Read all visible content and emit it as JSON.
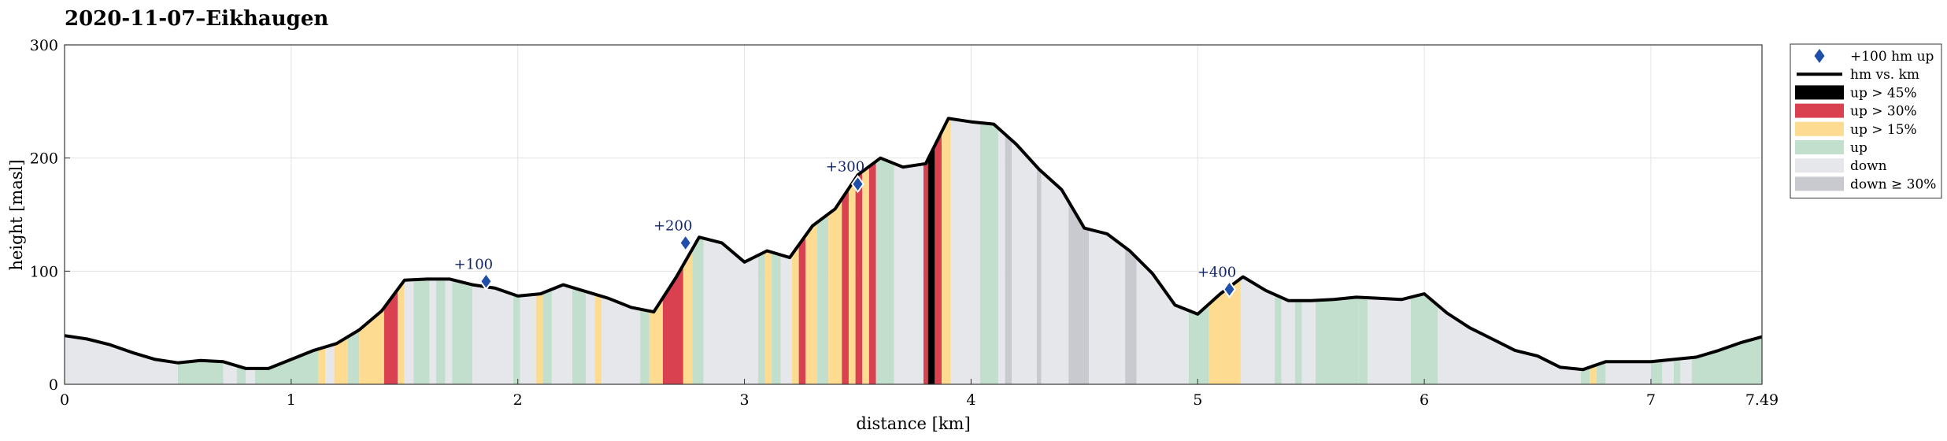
{
  "chart_data": {
    "type": "area",
    "title": "2020-11-07–Eikhaugen",
    "xlabel": "distance [km]",
    "ylabel": "height [masl]",
    "xlim": [
      0,
      7.49
    ],
    "ylim": [
      0,
      300
    ],
    "x_ticks": [
      0,
      1,
      2,
      3,
      4,
      5,
      6,
      7,
      7.49
    ],
    "x_tick_labels": [
      "0",
      "1",
      "2",
      "3",
      "4",
      "5",
      "6",
      "7",
      "7.49"
    ],
    "y_ticks": [
      0,
      100,
      200,
      300
    ],
    "y_tick_labels": [
      "0",
      "100",
      "200",
      "300"
    ],
    "grid": true,
    "legend_position": "outside-right-top",
    "legend": [
      {
        "label": "+100 hm up",
        "kind": "diamond",
        "color": "#1f4fa8"
      },
      {
        "label": "hm vs. km",
        "kind": "line",
        "color": "#000000"
      },
      {
        "label": "up > 45%",
        "kind": "patch",
        "color": "#000000"
      },
      {
        "label": "up > 30%",
        "kind": "patch",
        "color": "#d94050"
      },
      {
        "label": "up > 15%",
        "kind": "patch",
        "color": "#fddc92"
      },
      {
        "label": "up",
        "kind": "patch",
        "color": "#c1dfcc"
      },
      {
        "label": "down",
        "kind": "patch",
        "color": "#e6e7ea"
      },
      {
        "label": "down ≥ 30%",
        "kind": "patch",
        "color": "#c8cad0"
      }
    ],
    "profile": {
      "x": [
        0,
        0.1,
        0.2,
        0.3,
        0.4,
        0.5,
        0.6,
        0.7,
        0.8,
        0.9,
        1.0,
        1.1,
        1.2,
        1.3,
        1.4,
        1.5,
        1.6,
        1.7,
        1.8,
        1.9,
        2.0,
        2.1,
        2.2,
        2.3,
        2.4,
        2.5,
        2.6,
        2.7,
        2.8,
        2.9,
        3.0,
        3.1,
        3.2,
        3.3,
        3.4,
        3.5,
        3.6,
        3.7,
        3.8,
        3.9,
        4.0,
        4.1,
        4.2,
        4.3,
        4.4,
        4.5,
        4.6,
        4.7,
        4.8,
        4.9,
        5.0,
        5.1,
        5.2,
        5.3,
        5.4,
        5.5,
        5.6,
        5.7,
        5.8,
        5.9,
        6.0,
        6.1,
        6.2,
        6.3,
        6.4,
        6.5,
        6.6,
        6.7,
        6.8,
        6.9,
        7.0,
        7.1,
        7.2,
        7.3,
        7.4,
        7.49
      ],
      "y": [
        43,
        40,
        35,
        28,
        22,
        19,
        21,
        20,
        14,
        14,
        22,
        30,
        36,
        48,
        65,
        92,
        93,
        93,
        88,
        85,
        78,
        80,
        88,
        82,
        76,
        68,
        64,
        95,
        130,
        125,
        108,
        118,
        112,
        140,
        155,
        185,
        200,
        192,
        195,
        235,
        232,
        230,
        212,
        190,
        172,
        138,
        133,
        118,
        98,
        70,
        62,
        80,
        95,
        83,
        74,
        74,
        75,
        77,
        76,
        75,
        80,
        63,
        50,
        40,
        30,
        25,
        15,
        13,
        20,
        20,
        20,
        22,
        24,
        30,
        37,
        42
      ]
    },
    "segments": [
      {
        "x0": 0.0,
        "x1": 0.5,
        "category": "down"
      },
      {
        "x0": 0.5,
        "x1": 0.7,
        "category": "up"
      },
      {
        "x0": 0.7,
        "x1": 0.76,
        "category": "down"
      },
      {
        "x0": 0.76,
        "x1": 0.8,
        "category": "up"
      },
      {
        "x0": 0.8,
        "x1": 0.84,
        "category": "down"
      },
      {
        "x0": 0.84,
        "x1": 1.12,
        "category": "up"
      },
      {
        "x0": 1.12,
        "x1": 1.15,
        "category": "up > 15%"
      },
      {
        "x0": 1.15,
        "x1": 1.19,
        "category": "down"
      },
      {
        "x0": 1.19,
        "x1": 1.25,
        "category": "up > 15%"
      },
      {
        "x0": 1.25,
        "x1": 1.3,
        "category": "up"
      },
      {
        "x0": 1.3,
        "x1": 1.41,
        "category": "up > 15%"
      },
      {
        "x0": 1.41,
        "x1": 1.47,
        "category": "up > 30%"
      },
      {
        "x0": 1.47,
        "x1": 1.5,
        "category": "up > 15%"
      },
      {
        "x0": 1.5,
        "x1": 1.54,
        "category": "down"
      },
      {
        "x0": 1.54,
        "x1": 1.61,
        "category": "up"
      },
      {
        "x0": 1.61,
        "x1": 1.64,
        "category": "down"
      },
      {
        "x0": 1.64,
        "x1": 1.68,
        "category": "up"
      },
      {
        "x0": 1.68,
        "x1": 1.71,
        "category": "down"
      },
      {
        "x0": 1.71,
        "x1": 1.8,
        "category": "up"
      },
      {
        "x0": 1.8,
        "x1": 1.98,
        "category": "down"
      },
      {
        "x0": 1.98,
        "x1": 2.01,
        "category": "up"
      },
      {
        "x0": 2.01,
        "x1": 2.08,
        "category": "down"
      },
      {
        "x0": 2.08,
        "x1": 2.11,
        "category": "up > 15%"
      },
      {
        "x0": 2.11,
        "x1": 2.15,
        "category": "up"
      },
      {
        "x0": 2.15,
        "x1": 2.24,
        "category": "down"
      },
      {
        "x0": 2.24,
        "x1": 2.3,
        "category": "up"
      },
      {
        "x0": 2.3,
        "x1": 2.34,
        "category": "down"
      },
      {
        "x0": 2.34,
        "x1": 2.37,
        "category": "up > 15%"
      },
      {
        "x0": 2.37,
        "x1": 2.54,
        "category": "down"
      },
      {
        "x0": 2.54,
        "x1": 2.58,
        "category": "up"
      },
      {
        "x0": 2.58,
        "x1": 2.64,
        "category": "up > 15%"
      },
      {
        "x0": 2.64,
        "x1": 2.73,
        "category": "up > 30%"
      },
      {
        "x0": 2.73,
        "x1": 2.77,
        "category": "up > 15%"
      },
      {
        "x0": 2.77,
        "x1": 2.82,
        "category": "up"
      },
      {
        "x0": 2.82,
        "x1": 3.06,
        "category": "down"
      },
      {
        "x0": 3.06,
        "x1": 3.09,
        "category": "up"
      },
      {
        "x0": 3.09,
        "x1": 3.12,
        "category": "up > 15%"
      },
      {
        "x0": 3.12,
        "x1": 3.16,
        "category": "up"
      },
      {
        "x0": 3.16,
        "x1": 3.21,
        "category": "down"
      },
      {
        "x0": 3.21,
        "x1": 3.24,
        "category": "up > 15%"
      },
      {
        "x0": 3.24,
        "x1": 3.27,
        "category": "up > 30%"
      },
      {
        "x0": 3.27,
        "x1": 3.32,
        "category": "up > 15%"
      },
      {
        "x0": 3.32,
        "x1": 3.37,
        "category": "up"
      },
      {
        "x0": 3.37,
        "x1": 3.43,
        "category": "up > 15%"
      },
      {
        "x0": 3.43,
        "x1": 3.46,
        "category": "up > 30%"
      },
      {
        "x0": 3.46,
        "x1": 3.49,
        "category": "up > 15%"
      },
      {
        "x0": 3.49,
        "x1": 3.52,
        "category": "up > 30%"
      },
      {
        "x0": 3.52,
        "x1": 3.55,
        "category": "up > 15%"
      },
      {
        "x0": 3.55,
        "x1": 3.58,
        "category": "up > 30%"
      },
      {
        "x0": 3.58,
        "x1": 3.66,
        "category": "up"
      },
      {
        "x0": 3.66,
        "x1": 3.79,
        "category": "down"
      },
      {
        "x0": 3.79,
        "x1": 3.81,
        "category": "up > 30%"
      },
      {
        "x0": 3.81,
        "x1": 3.84,
        "category": "up > 45%"
      },
      {
        "x0": 3.84,
        "x1": 3.87,
        "category": "up > 30%"
      },
      {
        "x0": 3.87,
        "x1": 3.91,
        "category": "up > 15%"
      },
      {
        "x0": 3.91,
        "x1": 4.04,
        "category": "down"
      },
      {
        "x0": 4.04,
        "x1": 4.12,
        "category": "up"
      },
      {
        "x0": 4.12,
        "x1": 4.15,
        "category": "down"
      },
      {
        "x0": 4.15,
        "x1": 4.18,
        "category": "down ≥ 30%"
      },
      {
        "x0": 4.18,
        "x1": 4.29,
        "category": "down"
      },
      {
        "x0": 4.29,
        "x1": 4.31,
        "category": "down ≥ 30%"
      },
      {
        "x0": 4.31,
        "x1": 4.43,
        "category": "down"
      },
      {
        "x0": 4.43,
        "x1": 4.52,
        "category": "down ≥ 30%"
      },
      {
        "x0": 4.52,
        "x1": 4.68,
        "category": "down"
      },
      {
        "x0": 4.68,
        "x1": 4.73,
        "category": "down ≥ 30%"
      },
      {
        "x0": 4.73,
        "x1": 4.96,
        "category": "down"
      },
      {
        "x0": 4.96,
        "x1": 5.05,
        "category": "up"
      },
      {
        "x0": 5.05,
        "x1": 5.19,
        "category": "up > 15%"
      },
      {
        "x0": 5.19,
        "x1": 5.34,
        "category": "down"
      },
      {
        "x0": 5.34,
        "x1": 5.37,
        "category": "up"
      },
      {
        "x0": 5.37,
        "x1": 5.43,
        "category": "down"
      },
      {
        "x0": 5.43,
        "x1": 5.46,
        "category": "up"
      },
      {
        "x0": 5.46,
        "x1": 5.52,
        "category": "down"
      },
      {
        "x0": 5.52,
        "x1": 5.71,
        "category": "up"
      },
      {
        "x0": 5.71,
        "x1": 5.75,
        "category": "up"
      },
      {
        "x0": 5.75,
        "x1": 5.94,
        "category": "down"
      },
      {
        "x0": 5.94,
        "x1": 6.06,
        "category": "up"
      },
      {
        "x0": 6.06,
        "x1": 6.69,
        "category": "down"
      },
      {
        "x0": 6.69,
        "x1": 6.73,
        "category": "up"
      },
      {
        "x0": 6.73,
        "x1": 6.76,
        "category": "up > 15%"
      },
      {
        "x0": 6.76,
        "x1": 6.8,
        "category": "up"
      },
      {
        "x0": 6.8,
        "x1": 7.0,
        "category": "down"
      },
      {
        "x0": 7.0,
        "x1": 7.05,
        "category": "up"
      },
      {
        "x0": 7.05,
        "x1": 7.1,
        "category": "down"
      },
      {
        "x0": 7.1,
        "x1": 7.13,
        "category": "up"
      },
      {
        "x0": 7.13,
        "x1": 7.18,
        "category": "down"
      },
      {
        "x0": 7.18,
        "x1": 7.49,
        "category": "up"
      }
    ],
    "markers": [
      {
        "x": 1.86,
        "y": 91,
        "label": "+100"
      },
      {
        "x": 2.74,
        "y": 125,
        "label": "+200"
      },
      {
        "x": 3.5,
        "y": 177,
        "label": "+300"
      },
      {
        "x": 5.14,
        "y": 84,
        "label": "+400"
      }
    ]
  }
}
